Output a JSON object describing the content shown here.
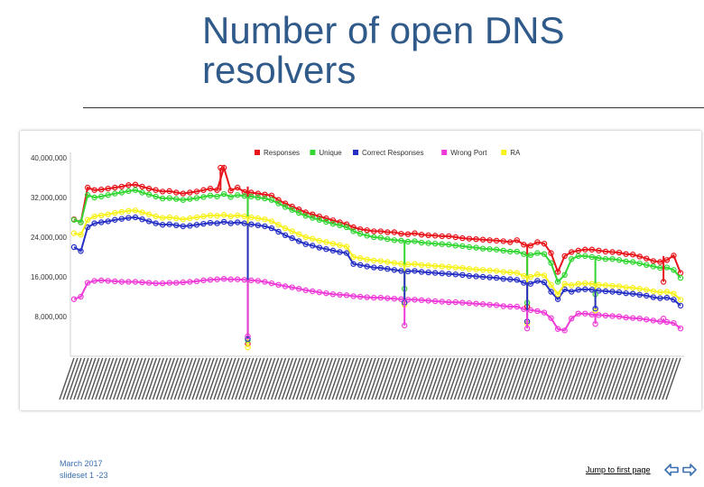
{
  "slide": {
    "title": "Number of open DNS resolvers",
    "footer_date": "March 2017",
    "footer_slide": "slideset 1 -23",
    "jump_label": "Jump to first page"
  },
  "chart_data": {
    "type": "line",
    "legend_position": "top",
    "ylim": [
      0,
      40000000
    ],
    "yticks": [
      "8,000,000",
      "16,000,000",
      "24,000,000",
      "32,000,000",
      "40,000,000"
    ],
    "ytick_values": [
      8000000,
      16000000,
      24000000,
      32000000,
      40000000
    ],
    "grid": false,
    "x_points": 90,
    "series": [
      {
        "name": "Responses",
        "color": "#e8141b",
        "values": [
          27.6,
          27,
          34,
          33.5,
          33.6,
          33.8,
          34,
          34.2,
          34.5,
          34.6,
          34.2,
          33.8,
          33.5,
          33.2,
          33.3,
          33,
          32.8,
          33,
          33.2,
          33.5,
          33.8,
          33.5,
          38,
          33.4,
          34,
          33.1,
          33,
          32.8,
          32.6,
          32.4,
          31.5,
          30.8,
          30.2,
          29.6,
          29,
          28.6,
          28.2,
          27.8,
          27.4,
          27,
          26.6,
          26,
          25.6,
          25.4,
          25.2,
          25.2,
          25,
          25,
          24.7,
          24.6,
          24.8,
          24.5,
          24.4,
          24.3,
          24.2,
          24.2,
          24,
          23.8,
          23.7,
          23.6,
          23.5,
          23.4,
          23.3,
          23.2,
          23,
          23.4,
          22.5,
          22.3,
          23,
          22.7,
          20.8,
          17,
          20.2,
          21,
          21.3,
          21.5,
          21.5,
          21.3,
          21.1,
          21,
          20.9,
          20.6,
          20.5,
          20.1,
          19.7,
          19.2,
          19,
          19.4,
          20.3,
          16.8
        ]
      },
      {
        "name": "Unique",
        "color": "#33d633",
        "values": [
          27.5,
          27,
          32.5,
          32,
          32.2,
          32.5,
          32.8,
          33,
          33.3,
          33.5,
          33,
          32.6,
          32.2,
          31.8,
          31.9,
          31.7,
          31.5,
          31.7,
          31.9,
          32.1,
          32.4,
          32.2,
          32.7,
          32.1,
          32.5,
          32.3,
          32.2,
          32,
          31.8,
          31.5,
          30.8,
          30.1,
          29.5,
          28.9,
          28.3,
          27.9,
          27.5,
          27.1,
          26.7,
          26.4,
          26,
          25.2,
          24.7,
          24.3,
          24,
          23.9,
          23.6,
          23.4,
          23.3,
          23.1,
          23.2,
          22.9,
          22.8,
          22.7,
          22.6,
          22.5,
          22.3,
          22.2,
          22,
          21.9,
          21.7,
          21.6,
          21.5,
          21.3,
          21.1,
          21.1,
          20.6,
          20.4,
          20.8,
          20.6,
          18.8,
          15,
          16.4,
          19.6,
          20.2,
          20.2,
          20,
          19.8,
          19.6,
          19.6,
          19.4,
          19.1,
          19,
          18.7,
          18.4,
          18.1,
          17.8,
          17.9,
          17.4,
          15.8
        ]
      },
      {
        "name": "Correct Responses",
        "color": "#2630c4",
        "values": [
          22,
          21.2,
          26,
          26.8,
          27,
          27.2,
          27.5,
          27.7,
          27.9,
          28,
          27.6,
          27.2,
          26.8,
          26.5,
          26.6,
          26.4,
          26.2,
          26.3,
          26.5,
          26.7,
          26.9,
          26.8,
          27.1,
          26.8,
          27,
          26.8,
          26.6,
          26.4,
          26.2,
          25.8,
          25.1,
          24.4,
          23.8,
          23.2,
          22.6,
          22.3,
          21.9,
          21.6,
          21.3,
          21,
          20.8,
          18.6,
          18.4,
          18.1,
          17.9,
          17.8,
          17.6,
          17.4,
          17.2,
          17.1,
          17.2,
          17,
          16.9,
          16.8,
          16.7,
          16.6,
          16.5,
          16.4,
          16.2,
          16.1,
          16,
          15.9,
          15.8,
          15.6,
          15.5,
          15.4,
          14.8,
          14.6,
          15.2,
          14.9,
          13,
          11.5,
          13.5,
          13,
          13.4,
          13.5,
          13.4,
          13.2,
          13.1,
          13,
          12.9,
          12.7,
          12.6,
          12.4,
          12.2,
          11.9,
          11.7,
          11.8,
          11.4,
          10.2
        ]
      },
      {
        "name": "Wrong Port",
        "color": "#ee3bd8",
        "values": [
          11.5,
          12,
          14.8,
          15.2,
          15.3,
          15.2,
          15.1,
          15,
          15,
          15,
          14.9,
          14.8,
          14.7,
          14.7,
          14.8,
          14.8,
          14.9,
          15,
          15.1,
          15.3,
          15.4,
          15.5,
          15.6,
          15.5,
          15.5,
          15.4,
          15.3,
          15.2,
          15,
          14.7,
          14.4,
          14.1,
          13.9,
          13.6,
          13.3,
          13.1,
          12.9,
          12.7,
          12.5,
          12.4,
          12.3,
          12.1,
          12,
          11.9,
          11.8,
          11.8,
          11.7,
          11.6,
          11.5,
          11.4,
          11.4,
          11.3,
          11.2,
          11.1,
          11,
          10.9,
          10.9,
          10.8,
          10.7,
          10.6,
          10.5,
          10.4,
          10.3,
          10.1,
          10,
          10,
          9.5,
          9.3,
          9.1,
          8.8,
          7.7,
          5.5,
          5.2,
          7.6,
          8.6,
          8.6,
          8.4,
          8.3,
          8.2,
          8.1,
          8,
          7.8,
          7.7,
          7.6,
          7.4,
          7.2,
          7,
          6.9,
          6.7,
          5.6
        ]
      },
      {
        "name": "RA",
        "color": "#f7f21c",
        "values": [
          24.8,
          24.5,
          27.5,
          28.2,
          28.4,
          28.6,
          28.9,
          29.1,
          29.3,
          29.4,
          29,
          28.6,
          28.2,
          27.9,
          28,
          27.8,
          27.6,
          27.8,
          28,
          28.2,
          28.4,
          28.3,
          28.5,
          28.2,
          28.4,
          28.2,
          28,
          27.8,
          27.6,
          27.2,
          26.5,
          25.8,
          25.2,
          24.6,
          24,
          23.7,
          23.3,
          23,
          22.7,
          22.4,
          22.1,
          20,
          19.8,
          19.5,
          19.3,
          19.2,
          19,
          18.8,
          18.6,
          18.5,
          18.6,
          18.4,
          18.3,
          18.2,
          18.1,
          18,
          17.9,
          17.8,
          17.6,
          17.5,
          17.4,
          17.3,
          17.2,
          17,
          16.9,
          16.8,
          16.2,
          16,
          16.5,
          16.3,
          14.4,
          12.5,
          14.6,
          14.3,
          14.6,
          14.7,
          14.6,
          14.4,
          14.3,
          14.2,
          14.1,
          13.9,
          13.8,
          13.6,
          13.4,
          13.1,
          12.9,
          13,
          12.6,
          11.4
        ]
      }
    ],
    "spikes": [
      {
        "series": "Responses",
        "at": 21.5,
        "values": [
          38,
          33.4
        ]
      },
      {
        "series": "Responses",
        "at": 25.5,
        "values": [
          2.5,
          34.2
        ]
      },
      {
        "series": "Unique",
        "at": 25.5,
        "values": [
          3.2,
          32.2
        ]
      },
      {
        "series": "RA",
        "at": 25.5,
        "values": [
          1.8,
          28.2
        ]
      },
      {
        "series": "Correct Responses",
        "at": 25.5,
        "values": [
          3.5,
          26.8
        ]
      },
      {
        "series": "Wrong Port",
        "at": 25.5,
        "values": [
          4,
          15.4
        ]
      },
      {
        "series": "Unique",
        "at": 48.5,
        "values": [
          13.6,
          23.4
        ]
      },
      {
        "series": "RA",
        "at": 48.5,
        "values": [
          10.4,
          18.5
        ]
      },
      {
        "series": "Correct Responses",
        "at": 48.5,
        "values": [
          10.8,
          17.2
        ]
      },
      {
        "series": "Wrong Port",
        "at": 48.5,
        "values": [
          6.2,
          11.4
        ]
      },
      {
        "series": "Responses",
        "at": 66.5,
        "values": [
          10,
          22.6
        ]
      },
      {
        "series": "Unique",
        "at": 66.5,
        "values": [
          10.8,
          20.6
        ]
      },
      {
        "series": "RA",
        "at": 66.5,
        "values": [
          6.6,
          16.3
        ]
      },
      {
        "series": "Correct Responses",
        "at": 66.5,
        "values": [
          7,
          14.9
        ]
      },
      {
        "series": "Wrong Port",
        "at": 66.5,
        "values": [
          5.6,
          9.3
        ]
      },
      {
        "series": "Unique",
        "at": 76.5,
        "values": [
          12.5,
          20.2
        ]
      },
      {
        "series": "RA",
        "at": 76.5,
        "values": [
          9.2,
          14.7
        ]
      },
      {
        "series": "Correct Responses",
        "at": 76.5,
        "values": [
          9.6,
          13.5
        ]
      },
      {
        "series": "Wrong Port",
        "at": 76.5,
        "values": [
          6.5,
          8.6
        ]
      },
      {
        "series": "Responses",
        "at": 86.5,
        "values": [
          15,
          20.2
        ]
      },
      {
        "series": "Wrong Port",
        "at": 86.5,
        "values": [
          7.6,
          6.9
        ]
      }
    ],
    "value_unit": "millions"
  },
  "colors": {
    "title": "#2f5a8a",
    "footer": "#3a6fb0",
    "arrow": "#3a6fb0"
  },
  "icons": {
    "prev": "arrow-left-icon",
    "next": "arrow-right-icon"
  }
}
